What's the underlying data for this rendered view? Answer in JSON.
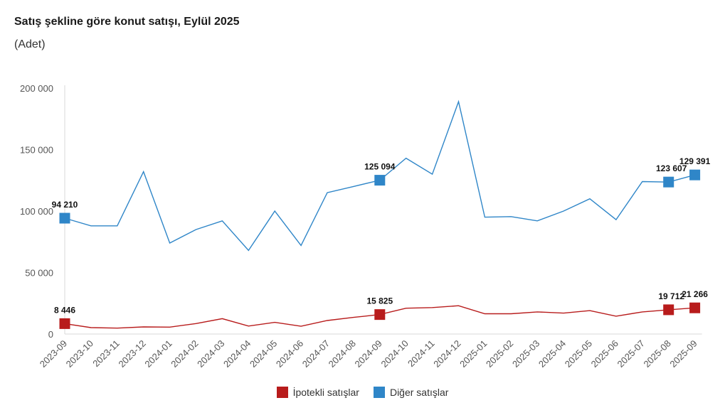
{
  "title": "Satış şekline göre konut satışı, Eylül 2025",
  "subtitle": "(Adet)",
  "chart_data": {
    "type": "line",
    "title": "Satış şekline göre konut satışı, Eylül 2025",
    "ylabel": "(Adet)",
    "xlabel": "",
    "ylim": [
      0,
      200000
    ],
    "yticks": [
      0,
      50000,
      100000,
      150000,
      200000
    ],
    "ytick_labels": [
      "0",
      "50 000",
      "100 000",
      "150 000",
      "200 000"
    ],
    "categories": [
      "2023-09",
      "2023-10",
      "2023-11",
      "2023-12",
      "2024-01",
      "2024-02",
      "2024-03",
      "2024-04",
      "2024-05",
      "2024-06",
      "2024-07",
      "2024-08",
      "2024-09",
      "2024-10",
      "2024-11",
      "2024-12",
      "2025-01",
      "2025-02",
      "2025-03",
      "2025-04",
      "2025-05",
      "2025-06",
      "2025-07",
      "2025-08",
      "2025-09"
    ],
    "series": [
      {
        "name": "Diğer satışlar",
        "color": "#2f86c8",
        "values": [
          94210,
          88000,
          88000,
          132000,
          74000,
          85000,
          92000,
          68000,
          100000,
          72000,
          115000,
          120000,
          125094,
          143000,
          130000,
          189000,
          95000,
          95500,
          92000,
          100000,
          110000,
          93000,
          124000,
          123607,
          129391
        ],
        "labeled_points": [
          {
            "index": 0,
            "label": "94 210"
          },
          {
            "index": 12,
            "label": "125 094"
          },
          {
            "index": 23,
            "label": "123 607"
          },
          {
            "index": 24,
            "label": "129 391"
          }
        ]
      },
      {
        "name": "İpotekli satışlar",
        "color": "#b81c1c",
        "values": [
          8446,
          5200,
          4800,
          5800,
          5600,
          8500,
          12500,
          6500,
          9500,
          6300,
          11000,
          13500,
          15825,
          21000,
          21500,
          23000,
          16500,
          16500,
          18000,
          17000,
          19000,
          14500,
          18000,
          19712,
          21266
        ],
        "labeled_points": [
          {
            "index": 0,
            "label": "8 446"
          },
          {
            "index": 12,
            "label": "15 825"
          },
          {
            "index": 23,
            "label": "19 712"
          },
          {
            "index": 24,
            "label": "21 266"
          }
        ]
      }
    ],
    "legend": [
      {
        "name": "İpotekli satışlar",
        "color": "#b81c1c"
      },
      {
        "name": "Diğer satışlar",
        "color": "#2f86c8"
      }
    ],
    "legend_position": "bottom"
  }
}
